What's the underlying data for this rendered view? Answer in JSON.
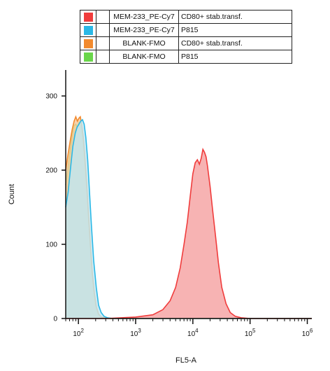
{
  "chart_data": {
    "type": "area",
    "title": "",
    "xlabel": "FL5-A",
    "ylabel": "Count",
    "x_scale": "log",
    "xlim": [
      60,
      1200000
    ],
    "ylim": [
      0,
      335
    ],
    "x_ticks": [
      {
        "value": 100,
        "base": "10",
        "exp": "2"
      },
      {
        "value": 1000,
        "base": "10",
        "exp": "3"
      },
      {
        "value": 10000,
        "base": "10",
        "exp": "4"
      },
      {
        "value": 100000,
        "base": "10",
        "exp": "5"
      },
      {
        "value": 1000000,
        "base": "10",
        "exp": "6"
      }
    ],
    "y_ticks": [
      0,
      100,
      200,
      300
    ],
    "grid": false,
    "legend_position": "top",
    "legend": [
      {
        "stain": "MEM-233_PE-Cy7",
        "cells": "CD80+ stab.transf.",
        "color": "#f03c3c"
      },
      {
        "stain": "MEM-233_PE-Cy7",
        "cells": "P815",
        "color": "#2ab8e6"
      },
      {
        "stain": "BLANK-FMO",
        "cells": "CD80+ stab.transf.",
        "color": "#f28a2e"
      },
      {
        "stain": "BLANK-FMO",
        "cells": "P815",
        "color": "#6ad64a"
      }
    ],
    "series": [
      {
        "name": "MEM-233_PE-Cy7 CD80+ stab.transf.",
        "color": "#f03c3c",
        "fill": "#f5a0a0",
        "x": [
          60,
          300,
          1000,
          2000,
          3000,
          4000,
          5000,
          6000,
          7000,
          8000,
          9000,
          10000,
          11000,
          12000,
          13000,
          14000,
          15000,
          16000,
          17000,
          18000,
          20000,
          22000,
          25000,
          28000,
          32000,
          38000,
          45000,
          55000,
          70000,
          100000,
          1200000
        ],
        "y": [
          0,
          0,
          2,
          5,
          12,
          24,
          42,
          68,
          100,
          130,
          165,
          195,
          210,
          214,
          208,
          216,
          228,
          224,
          218,
          206,
          178,
          148,
          110,
          75,
          42,
          20,
          8,
          3,
          1,
          0,
          0
        ]
      },
      {
        "name": "MEM-233_PE-Cy7 P815",
        "color": "#2ab8e6",
        "fill": "#bfe6f2",
        "x": [
          60,
          66,
          70,
          75,
          80,
          88,
          95,
          102,
          110,
          118,
          126,
          135,
          145,
          155,
          168,
          185,
          205,
          225,
          250,
          280,
          320,
          400,
          1200000
        ],
        "y": [
          150,
          170,
          190,
          212,
          232,
          250,
          258,
          262,
          266,
          268,
          262,
          244,
          214,
          176,
          128,
          78,
          42,
          18,
          8,
          3,
          1,
          0,
          0
        ]
      },
      {
        "name": "BLANK-FMO CD80+ stab.transf.",
        "color": "#f28a2e",
        "fill": "#f8c89a",
        "x": [
          60,
          66,
          72,
          78,
          84,
          90,
          96,
          102,
          108,
          114,
          122,
          130,
          140,
          150,
          162,
          175,
          190,
          205,
          225,
          250,
          290,
          360,
          1200000
        ],
        "y": [
          200,
          222,
          240,
          255,
          266,
          272,
          266,
          270,
          272,
          262,
          244,
          216,
          180,
          140,
          100,
          62,
          34,
          16,
          6,
          2,
          1,
          0,
          0
        ]
      },
      {
        "name": "BLANK-FMO P815",
        "color": "#6ad64a",
        "fill": "#bde8a8",
        "x": [
          60,
          66,
          72,
          78,
          84,
          90,
          96,
          102,
          108,
          114,
          122,
          130,
          140,
          150,
          162,
          175,
          190,
          205,
          225,
          250,
          290,
          360,
          1200000
        ],
        "y": [
          180,
          204,
          228,
          248,
          260,
          262,
          258,
          264,
          262,
          252,
          236,
          210,
          176,
          136,
          96,
          58,
          30,
          14,
          5,
          2,
          1,
          0,
          0
        ]
      }
    ]
  }
}
